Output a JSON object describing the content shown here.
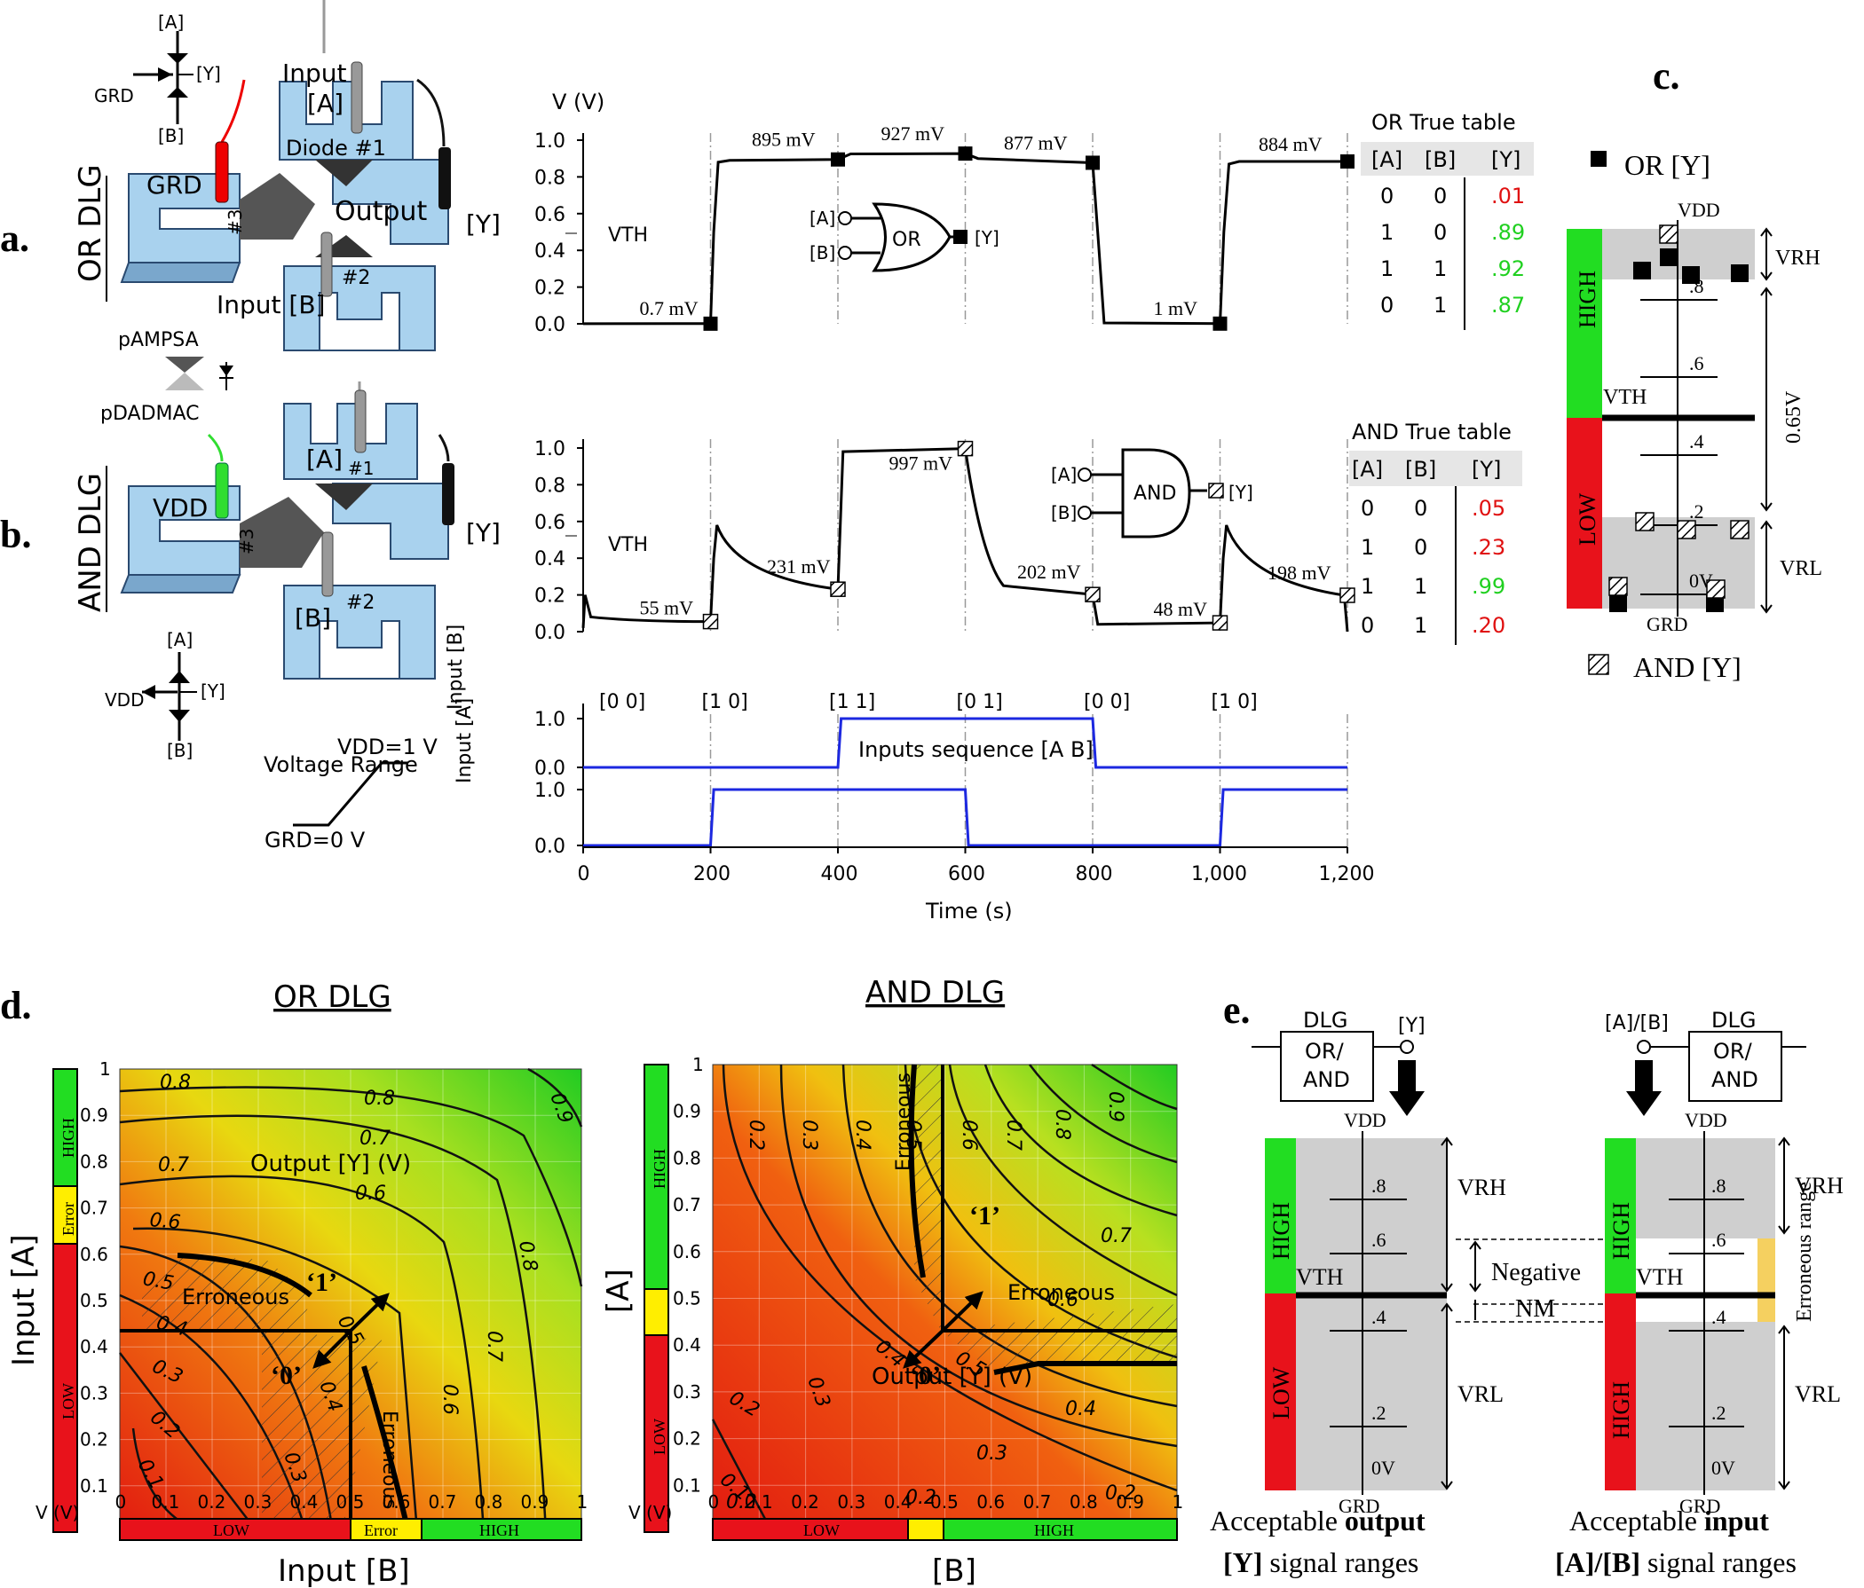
{
  "panels": {
    "a": "a.",
    "b": "b.",
    "c": "c.",
    "d": "d.",
    "e": "e."
  },
  "schematic_a": {
    "title": "OR DLG",
    "input_top": "Input",
    "A": "[A]",
    "diode1": "Diode #1",
    "grd": "GRD",
    "n3": "#3",
    "output": "Output",
    "Y": "[Y]",
    "input_bottom": "Input [B]",
    "n2": "#2",
    "sym_A": "[A]",
    "sym_Y": "[Y]",
    "sym_B": "[B]",
    "sym_grd": "GRD"
  },
  "legend_poly": {
    "top": "pAMPSA",
    "bottom": "pDADMAC"
  },
  "schematic_b": {
    "title": "AND DLG",
    "A": "[A]",
    "n1": "#1",
    "vdd": "VDD",
    "n3": "#3",
    "Y": "[Y]",
    "B": "[B]",
    "n2": "#2",
    "sym_A": "[A]",
    "sym_Y": "[Y]",
    "sym_B": "[B]",
    "sym_vdd": "VDD"
  },
  "voltage_range": {
    "label": "Voltage Range",
    "top": "VDD=1 V",
    "bottom": "GRD=0 V"
  },
  "chart_data": [
    {
      "type": "line",
      "panel": "a",
      "ylabel": "V (V)",
      "ylim": [
        0,
        1.0
      ],
      "yticks": [
        "0.0",
        "0.2",
        "0.4",
        "0.6",
        "0.8",
        "1.0"
      ],
      "vth_label": "VTH",
      "annotations": [
        "0.7 mV",
        "895 mV",
        "927 mV",
        "877 mV",
        "1 mV",
        "884 mV"
      ],
      "points": [
        [
          0,
          0.0007
        ],
        [
          200,
          0.0007
        ],
        [
          210,
          0.89
        ],
        [
          400,
          0.895
        ],
        [
          600,
          0.927
        ],
        [
          800,
          0.877
        ],
        [
          810,
          0.001
        ],
        [
          1000,
          0.001
        ],
        [
          1010,
          0.884
        ],
        [
          1200,
          0.884
        ]
      ],
      "gate": {
        "name": "OR",
        "in_a": "[A]",
        "in_b": "[B]",
        "out": "[Y]"
      }
    },
    {
      "type": "line",
      "panel": "b",
      "ylim": [
        0,
        1.0
      ],
      "yticks": [
        "0.0",
        "0.2",
        "0.4",
        "0.6",
        "0.8",
        "1.0"
      ],
      "vth_label": "VTH",
      "annotations": [
        "55 mV",
        "231 mV",
        "997 mV",
        "202 mV",
        "48 mV",
        "198 mV"
      ],
      "gate": {
        "name": "AND",
        "in_a": "[A]",
        "in_b": "[B]",
        "out": "[Y]"
      }
    },
    {
      "type": "line",
      "panel": "inputs",
      "xlabel": "Time (s)",
      "xticks": [
        "0",
        "200",
        "400",
        "600",
        "800",
        "1,000",
        "1,200"
      ],
      "sequence_label": "Inputs sequence [A B]",
      "sequence": [
        "[0 0]",
        "[1 0]",
        "[1 1]",
        "[0 1]",
        "[0 0]",
        "[1 0]"
      ],
      "input_b_label": "Input [B]",
      "input_a_label": "Input [A]",
      "yticks": [
        "0.0",
        "1.0"
      ],
      "series": [
        {
          "name": "Input [B]",
          "values": [
            0,
            0,
            1,
            1,
            0,
            0
          ]
        },
        {
          "name": "Input [A]",
          "values": [
            0,
            1,
            1,
            0,
            0,
            1
          ]
        }
      ]
    },
    {
      "type": "heatmap",
      "panel": "d-or",
      "title": "OR DLG",
      "xlabel": "Input [B]",
      "ylabel": "Input [A]",
      "vlabel": "V (V)",
      "inner_label": "Output [Y] (V)",
      "erroneous": "Erroneous",
      "one": "‘1’",
      "zero": "‘0’",
      "xticks": [
        "0",
        "0.1",
        "0.2",
        "0.3",
        "0.4",
        "0.5",
        "0.6",
        "0.7",
        "0.8",
        "0.9",
        "1"
      ],
      "yticks": [
        "0.1",
        "0.2",
        "0.3",
        "0.4",
        "0.5",
        "0.6",
        "0.7",
        "0.8",
        "0.9",
        "1"
      ],
      "contours": [
        "0.1",
        "0.2",
        "0.3",
        "0.4",
        "0.5",
        "0.6",
        "0.7",
        "0.8",
        "0.9"
      ],
      "bar": {
        "low": "LOW",
        "error": "Error",
        "high": "HIGH"
      }
    },
    {
      "type": "heatmap",
      "panel": "d-and",
      "title": "AND DLG",
      "xlabel": "[B]",
      "ylabel": "[A]",
      "vlabel": "V (V)",
      "inner_label": "Output [Y] (V)",
      "erroneous": "Erroneous",
      "one": "‘1’",
      "zero": "‘0’",
      "xticks": [
        "0",
        "0.1",
        "0.2",
        "0.3",
        "0.4",
        "0.5",
        "0.6",
        "0.7",
        "0.8",
        "0.9",
        "1"
      ],
      "yticks": [
        "0.1",
        "0.2",
        "0.3",
        "0.4",
        "0.5",
        "0.6",
        "0.7",
        "0.8",
        "0.9",
        "1"
      ],
      "contours": [
        "0.1",
        "0.2",
        "0.3",
        "0.4",
        "0.5",
        "0.6",
        "0.7",
        "0.8",
        "0.9"
      ],
      "bar": {
        "low": "LOW",
        "high": "HIGH"
      }
    }
  ],
  "or_table": {
    "title": "OR True table",
    "headers": [
      "[A]",
      "[B]",
      "[Y]"
    ],
    "rows": [
      [
        "0",
        "0",
        ".01"
      ],
      [
        "1",
        "0",
        ".89"
      ],
      [
        "1",
        "1",
        ".92"
      ],
      [
        "0",
        "1",
        ".87"
      ]
    ],
    "colors": [
      "#e01010",
      "#20d020",
      "#20d020",
      "#20d020"
    ]
  },
  "and_table": {
    "title": "AND True table",
    "headers": [
      "[A]",
      "[B]",
      "[Y]"
    ],
    "rows": [
      [
        "0",
        "0",
        ".05"
      ],
      [
        "1",
        "0",
        ".23"
      ],
      [
        "1",
        "1",
        ".99"
      ],
      [
        "0",
        "1",
        ".20"
      ]
    ],
    "colors": [
      "#e01010",
      "#e01010",
      "#20d020",
      "#e01010"
    ]
  },
  "panel_c": {
    "or_legend": "OR [Y]",
    "and_legend": "AND [Y]",
    "vdd": "VDD",
    "grd": "GRD",
    "vth": "VTH",
    "high": "HIGH",
    "low": "LOW",
    "ticks": [
      ".8",
      ".6",
      ".4",
      ".2",
      "0V"
    ],
    "vrh": "VRH",
    "vrl": "VRL",
    "span": "0.65V"
  },
  "panel_e": {
    "dlg": "DLG",
    "gate": "OR/ AND",
    "y": "[Y]",
    "ab": "[A]/[B]",
    "vdd": "VDD",
    "grd": "GRD",
    "vth": "VTH",
    "ticks": [
      ".8",
      ".6",
      ".4",
      ".2",
      "0V"
    ],
    "high": "HIGH",
    "low": "LOW",
    "vrh": "VRH",
    "vrl": "VRL",
    "negative": "Negative",
    "nm": "NM",
    "erroneous_range": "Erroneous range",
    "caption_out_1": "Acceptable ",
    "caption_out_bold": "output",
    "caption_out_2_bold": "[Y]",
    "caption_out_2": " signal ranges",
    "caption_in_1": "Acceptable ",
    "caption_in_bold": "input",
    "caption_in_2_bold": "[A]/[B]",
    "caption_in_2": " signal ranges"
  },
  "colors": {
    "red": "#e8121b",
    "green": "#22dd22",
    "yellow": "#ffee00",
    "blue": "#1c28e0",
    "blocks": "#a9d2ee",
    "gray": "#cfcfcf"
  }
}
